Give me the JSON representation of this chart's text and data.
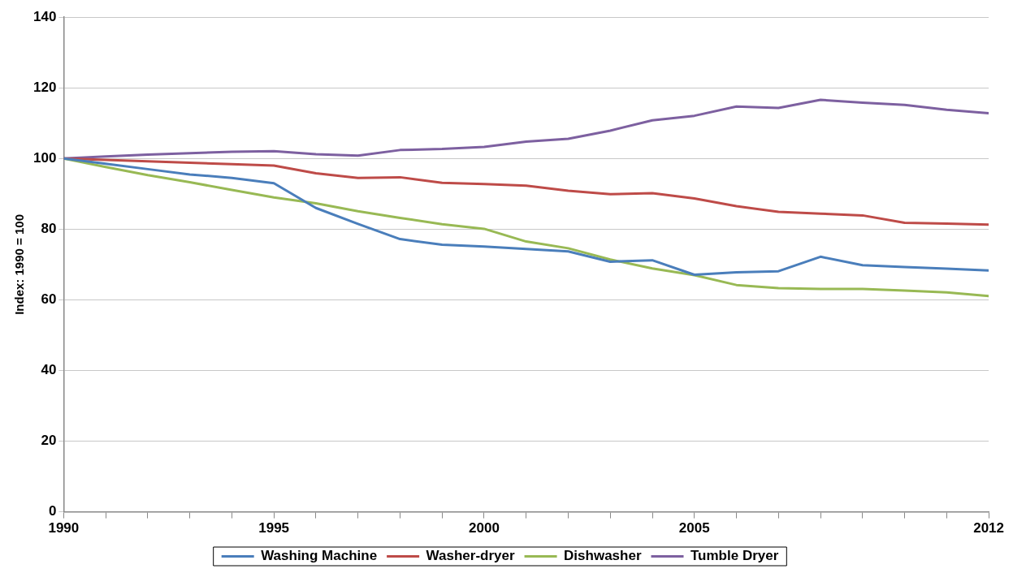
{
  "chart_data": {
    "type": "line",
    "ylabel": "Index: 1990 = 100",
    "x": [
      1990,
      1991,
      1992,
      1993,
      1994,
      1995,
      1996,
      1997,
      1998,
      1999,
      2000,
      2001,
      2002,
      2003,
      2004,
      2005,
      2006,
      2007,
      2008,
      2009,
      2010,
      2011,
      2012
    ],
    "series": [
      {
        "name": "Washing Machine",
        "color": "#4a7ebb",
        "values": [
          100,
          98.5,
          97,
          95.5,
          94.5,
          93,
          86,
          81.5,
          77.2,
          75.6,
          75.1,
          74.4,
          73.7,
          70.8,
          71.2,
          67.1,
          67.8,
          68.1,
          72.2,
          69.8,
          69.3,
          68.8,
          68.3
        ]
      },
      {
        "name": "Washer-dryer",
        "color": "#be4b48",
        "values": [
          100,
          99.6,
          99.2,
          98.8,
          98.4,
          98,
          95.8,
          94.5,
          94.7,
          93.1,
          92.8,
          92.3,
          90.9,
          89.9,
          90.2,
          88.7,
          86.5,
          84.9,
          84.4,
          83.9,
          81.8,
          81.6,
          81.3
        ]
      },
      {
        "name": "Dishwasher",
        "color": "#98b954",
        "values": [
          100,
          97.6,
          95.3,
          93.3,
          91.1,
          89,
          87.3,
          85.1,
          83.2,
          81.4,
          80.1,
          76.5,
          74.6,
          71.4,
          68.9,
          67,
          64.2,
          63.3,
          63.1,
          63.1,
          62.6,
          62.1,
          61.1
        ]
      },
      {
        "name": "Tumble Dryer",
        "color": "#7d60a0",
        "values": [
          100,
          100.6,
          101.1,
          101.5,
          101.9,
          102.1,
          101.2,
          100.8,
          102.4,
          102.7,
          103.3,
          104.8,
          105.6,
          107.9,
          110.8,
          112.1,
          114.7,
          114.3,
          116.6,
          115.8,
          115.2,
          113.8,
          112.8
        ]
      }
    ],
    "xlim": [
      1990,
      2012
    ],
    "xticks": [
      1990,
      {
        "value": 1991,
        "label": null
      },
      {
        "value": 1992,
        "label": null
      },
      {
        "value": 1993,
        "label": null
      },
      {
        "value": 1994,
        "label": null
      },
      1995,
      {
        "value": 1996,
        "label": null
      },
      {
        "value": 1997,
        "label": null
      },
      {
        "value": 1998,
        "label": null
      },
      {
        "value": 1999,
        "label": null
      },
      2000,
      {
        "value": 2001,
        "label": null
      },
      {
        "value": 2002,
        "label": null
      },
      {
        "value": 2003,
        "label": null
      },
      {
        "value": 2004,
        "label": null
      },
      2005,
      {
        "value": 2006,
        "label": null
      },
      {
        "value": 2007,
        "label": null
      },
      {
        "value": 2008,
        "label": null
      },
      {
        "value": 2009,
        "label": null
      },
      {
        "value": 2010,
        "label": null
      },
      {
        "value": 2011,
        "label": null
      },
      2012
    ],
    "ylim": [
      0,
      140
    ],
    "yticks": [
      0,
      20,
      40,
      60,
      80,
      100,
      120,
      140
    ],
    "grid": "y",
    "legend": "bottom",
    "marker": "none",
    "line_style": "solid"
  }
}
